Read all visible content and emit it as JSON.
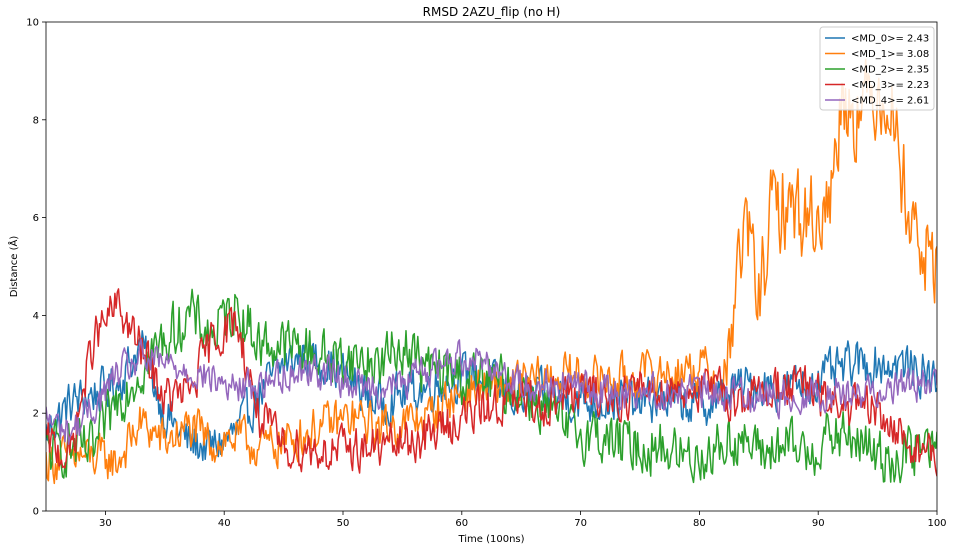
{
  "chart_data": {
    "type": "line",
    "title": "RMSD 2AZU_flip (no H)",
    "xlabel": "Time (100ns)",
    "ylabel": "Distance (Å)",
    "xlim": [
      25,
      100
    ],
    "ylim": [
      0,
      10
    ],
    "xticks": [
      30,
      40,
      50,
      60,
      70,
      80,
      90,
      100
    ],
    "yticks": [
      0,
      2,
      4,
      6,
      8,
      10
    ],
    "grid": false,
    "legend_position": "top-right",
    "series": [
      {
        "name": "<MD_0>= 2.43",
        "color": "#1f77b4",
        "x": [
          25,
          27,
          29,
          31,
          33,
          35,
          37,
          39,
          41,
          43,
          45,
          47,
          49,
          51,
          53,
          55,
          57,
          59,
          61,
          63,
          65,
          67,
          69,
          71,
          73,
          75,
          77,
          79,
          81,
          83,
          85,
          87,
          89,
          91,
          93,
          95,
          97,
          99,
          100
        ],
        "y": [
          1.6,
          2.2,
          2.4,
          2.6,
          3.4,
          2.0,
          1.4,
          1.3,
          1.6,
          2.4,
          3.0,
          3.2,
          3.0,
          2.6,
          2.2,
          2.4,
          2.5,
          2.7,
          2.8,
          2.5,
          2.3,
          2.4,
          2.3,
          2.2,
          2.3,
          2.2,
          2.3,
          2.2,
          2.2,
          2.5,
          2.6,
          2.5,
          2.6,
          2.8,
          3.0,
          3.0,
          3.0,
          2.8,
          2.7
        ]
      },
      {
        "name": "<MD_1>= 3.08",
        "color": "#ff7f0e",
        "x": [
          25,
          27,
          29,
          31,
          33,
          35,
          37,
          39,
          41,
          43,
          45,
          47,
          49,
          51,
          53,
          55,
          57,
          59,
          61,
          63,
          65,
          67,
          69,
          71,
          73,
          75,
          77,
          79,
          81,
          82,
          83,
          84,
          85,
          86,
          87,
          88,
          89,
          90,
          91,
          92,
          93,
          94,
          95,
          96,
          97,
          98,
          99,
          100
        ],
        "y": [
          1.0,
          1.1,
          1.1,
          1.0,
          1.8,
          1.4,
          1.7,
          1.4,
          1.5,
          1.3,
          1.4,
          1.6,
          1.8,
          1.9,
          1.7,
          1.8,
          1.9,
          2.3,
          2.5,
          2.5,
          2.6,
          2.7,
          2.8,
          2.7,
          2.7,
          2.8,
          2.8,
          2.9,
          2.9,
          2.3,
          4.5,
          5.9,
          4.3,
          6.0,
          6.3,
          6.2,
          6.0,
          6.1,
          6.3,
          8.6,
          8.2,
          8.3,
          8.6,
          8.5,
          7.0,
          5.8,
          5.2,
          5.1
        ]
      },
      {
        "name": "<MD_2>= 2.35",
        "color": "#2ca02c",
        "x": [
          25,
          27,
          29,
          31,
          33,
          35,
          37,
          39,
          41,
          43,
          45,
          47,
          49,
          51,
          53,
          55,
          57,
          59,
          61,
          63,
          65,
          67,
          69,
          71,
          73,
          75,
          77,
          79,
          81,
          83,
          85,
          87,
          89,
          91,
          93,
          95,
          97,
          99,
          100
        ],
        "y": [
          1.2,
          1.3,
          1.2,
          2.3,
          2.9,
          3.5,
          4.0,
          3.6,
          4.2,
          3.4,
          3.4,
          3.3,
          3.1,
          3.1,
          3.0,
          3.4,
          2.9,
          2.8,
          2.7,
          2.6,
          2.5,
          2.1,
          1.6,
          1.6,
          1.4,
          1.3,
          1.3,
          1.1,
          1.2,
          1.5,
          1.2,
          1.3,
          1.2,
          1.5,
          1.5,
          1.1,
          1.1,
          1.3,
          1.2
        ]
      },
      {
        "name": "<MD_3>= 2.23",
        "color": "#d62728",
        "x": [
          25,
          27,
          29,
          31,
          33,
          35,
          37,
          39,
          41,
          43,
          45,
          47,
          49,
          51,
          53,
          55,
          57,
          59,
          61,
          63,
          65,
          67,
          69,
          71,
          73,
          75,
          77,
          79,
          81,
          83,
          85,
          87,
          89,
          91,
          93,
          95,
          97,
          99,
          100
        ],
        "y": [
          1.4,
          1.1,
          3.5,
          4.2,
          3.3,
          2.3,
          2.4,
          3.5,
          3.9,
          1.9,
          1.3,
          1.3,
          1.2,
          1.3,
          1.3,
          1.4,
          1.5,
          1.8,
          2.0,
          2.2,
          2.2,
          2.2,
          2.4,
          2.4,
          2.3,
          2.5,
          2.5,
          2.5,
          2.5,
          2.3,
          2.4,
          2.6,
          2.5,
          2.2,
          2.1,
          2.0,
          1.5,
          1.2,
          1.1
        ]
      },
      {
        "name": "<MD_4>= 2.61",
        "color": "#9467bd",
        "x": [
          25,
          27,
          29,
          31,
          33,
          35,
          37,
          39,
          41,
          43,
          45,
          47,
          49,
          51,
          53,
          55,
          57,
          59,
          61,
          63,
          65,
          67,
          69,
          71,
          73,
          75,
          77,
          79,
          81,
          83,
          85,
          87,
          89,
          91,
          93,
          95,
          97,
          99,
          100
        ],
        "y": [
          1.9,
          1.6,
          2.1,
          2.8,
          3.1,
          3.0,
          2.9,
          2.7,
          2.5,
          2.6,
          2.8,
          2.9,
          2.8,
          2.6,
          2.5,
          2.6,
          2.9,
          3.1,
          3.2,
          2.9,
          2.6,
          2.6,
          2.6,
          2.5,
          2.4,
          2.5,
          2.4,
          2.5,
          2.4,
          2.4,
          2.4,
          2.3,
          2.4,
          2.4,
          2.4,
          2.5,
          2.6,
          2.6,
          2.5
        ]
      }
    ]
  }
}
